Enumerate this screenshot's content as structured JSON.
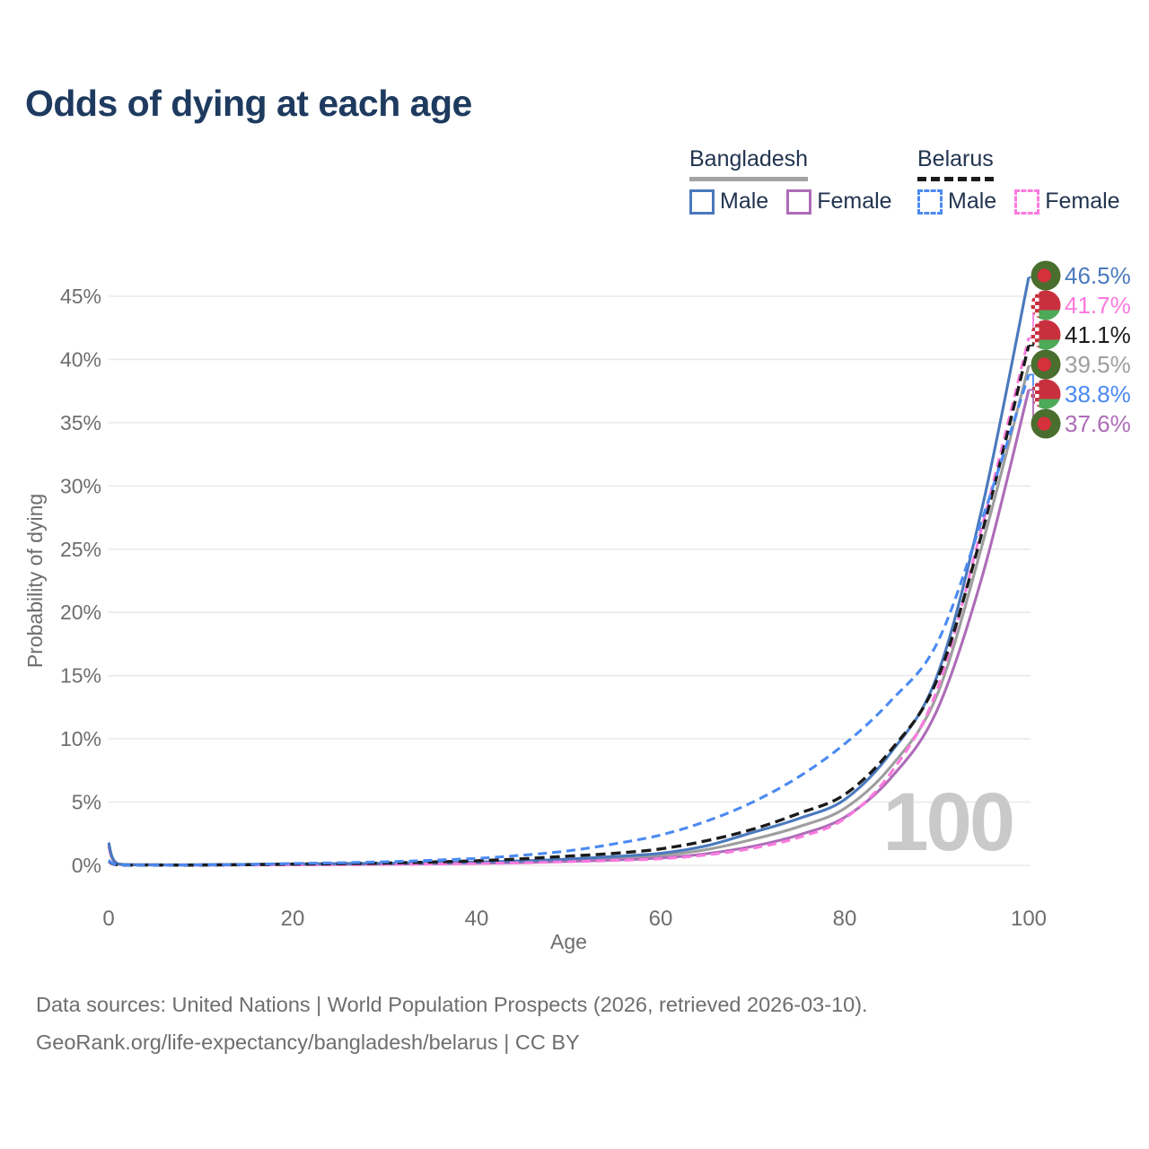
{
  "title": "Odds of dying at each age",
  "colors": {
    "title": "#1e3a5f",
    "legend_text": "#22344f",
    "axis_text": "#6e6e6e",
    "gridline": "#eaeaea",
    "watermark": "#c9c9c9",
    "footer_text": "#6e6e6e"
  },
  "legend": {
    "groups": [
      {
        "country": "Bangladesh",
        "line_style": "solid",
        "underline_color": "#a3a3a3",
        "items": [
          {
            "label": "Male",
            "color": "#4a79bd"
          },
          {
            "label": "Female",
            "color": "#ad6cb7"
          }
        ]
      },
      {
        "country": "Belarus",
        "line_style": "dashed",
        "underline_color": "#1b1b1b",
        "items": [
          {
            "label": "Male",
            "color": "#4b8af2"
          },
          {
            "label": "Female",
            "color": "#fb7ade"
          }
        ]
      }
    ]
  },
  "footer": {
    "line1": "Data sources: United Nations | World Population Prospects (2026, retrieved 2026-03-10).",
    "line2": "GeoRank.org/life-expectancy/bangladesh/belarus | CC BY"
  },
  "chart_data": {
    "type": "line",
    "title": "Odds of dying at each age",
    "xlabel": "Age",
    "ylabel": "Probability of dying",
    "xlim": [
      0,
      100
    ],
    "ylim_percent": [
      0,
      47
    ],
    "x_ticks": [
      0,
      20,
      40,
      60,
      80,
      100
    ],
    "y_ticks_percent": [
      0,
      5,
      10,
      15,
      20,
      25,
      30,
      35,
      40,
      45
    ],
    "grid": "horizontal",
    "legend_position": "top-right",
    "age_watermark": "100",
    "flag_colors": {
      "bangladesh": {
        "field": "#4a6e2e",
        "disc": "#d6303c"
      },
      "belarus": {
        "red": "#c9303e",
        "green": "#4caa58",
        "white": "#ffffff"
      }
    },
    "ages": [
      0,
      1,
      5,
      10,
      15,
      20,
      25,
      30,
      35,
      40,
      45,
      50,
      55,
      60,
      65,
      70,
      75,
      80,
      85,
      90,
      95,
      100
    ],
    "series": [
      {
        "id": "bangladesh-male",
        "country": "Bangladesh",
        "sex": "Male",
        "color": "#4a79bd",
        "dash": "solid",
        "flag": "bd",
        "end_label": "46.5%",
        "end_value": 46.5,
        "values_percent": [
          1.8,
          0.12,
          0.05,
          0.05,
          0.08,
          0.12,
          0.14,
          0.16,
          0.2,
          0.26,
          0.36,
          0.5,
          0.7,
          0.95,
          1.55,
          2.6,
          3.7,
          5.2,
          8.9,
          14.9,
          28.5,
          46.5
        ]
      },
      {
        "id": "bangladesh-female",
        "country": "Bangladesh",
        "sex": "Female",
        "color": "#ad6cb7",
        "dash": "solid",
        "flag": "bd",
        "end_label": "37.6%",
        "end_value": 37.6,
        "values_percent": [
          1.5,
          0.1,
          0.04,
          0.04,
          0.05,
          0.06,
          0.07,
          0.09,
          0.12,
          0.16,
          0.22,
          0.31,
          0.42,
          0.58,
          0.92,
          1.5,
          2.4,
          3.8,
          6.9,
          12.2,
          23.0,
          37.6
        ]
      },
      {
        "id": "bangladesh-both",
        "country": "Bangladesh",
        "sex": "Both",
        "color": "#9e9e9e",
        "dash": "solid",
        "flag": "bd",
        "end_label": "39.5%",
        "end_value": 39.5,
        "values_percent": [
          1.65,
          0.11,
          0.045,
          0.045,
          0.065,
          0.09,
          0.11,
          0.13,
          0.16,
          0.21,
          0.29,
          0.41,
          0.56,
          0.78,
          1.25,
          2.05,
          3.05,
          4.5,
          7.8,
          13.4,
          25.5,
          39.5
        ]
      },
      {
        "id": "belarus-male",
        "country": "Belarus",
        "sex": "Male",
        "color": "#4b8af2",
        "dash": "dashed",
        "flag": "by",
        "end_label": "38.8%",
        "end_value": 38.8,
        "values_percent": [
          0.4,
          0.04,
          0.02,
          0.025,
          0.07,
          0.14,
          0.2,
          0.28,
          0.4,
          0.55,
          0.8,
          1.15,
          1.7,
          2.4,
          3.5,
          5.0,
          7.0,
          9.6,
          13.0,
          17.5,
          27.5,
          38.8
        ]
      },
      {
        "id": "belarus-female",
        "country": "Belarus",
        "sex": "Female",
        "color": "#fb7ade",
        "dash": "dashed",
        "flag": "by",
        "end_label": "41.7%",
        "end_value": 41.7,
        "values_percent": [
          0.3,
          0.03,
          0.015,
          0.015,
          0.03,
          0.04,
          0.05,
          0.07,
          0.1,
          0.14,
          0.2,
          0.29,
          0.38,
          0.52,
          0.82,
          1.35,
          2.2,
          3.7,
          7.3,
          13.8,
          27.0,
          41.7
        ]
      },
      {
        "id": "belarus-both",
        "country": "Belarus",
        "sex": "Both",
        "color": "#1b1b1b",
        "dash": "dashed",
        "flag": "by",
        "end_label": "41.1%",
        "end_value": 41.1,
        "values_percent": [
          0.35,
          0.035,
          0.018,
          0.02,
          0.05,
          0.09,
          0.13,
          0.18,
          0.26,
          0.36,
          0.52,
          0.73,
          0.95,
          1.3,
          1.95,
          2.85,
          4.1,
          5.6,
          9.1,
          14.6,
          26.5,
          41.1
        ]
      }
    ]
  }
}
